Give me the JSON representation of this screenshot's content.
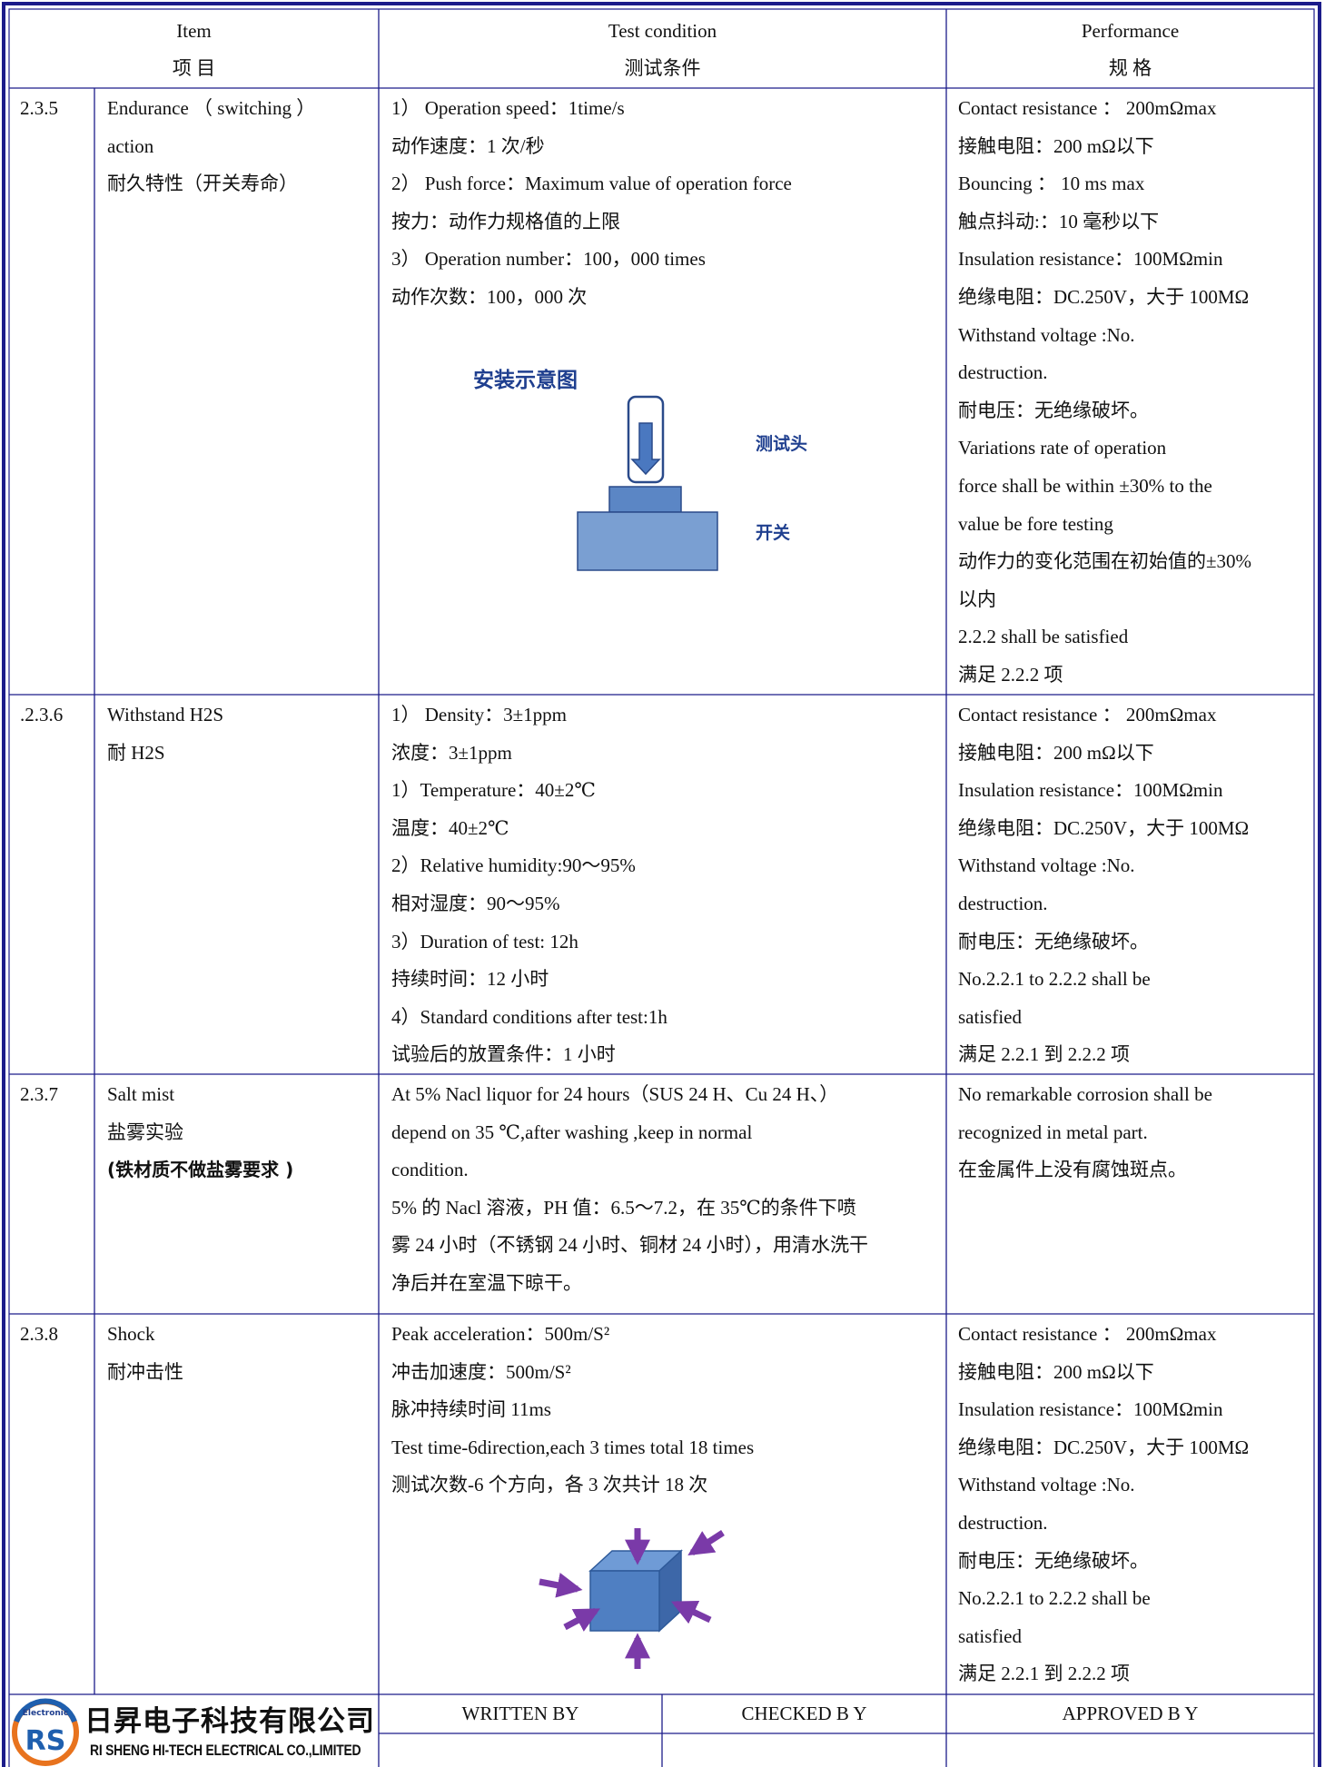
{
  "header": {
    "item_en": "Item",
    "item_zh": "项 目",
    "condition_en": "Test condition",
    "condition_zh": "测试条件",
    "performance_en": "Performance",
    "performance_zh": "规 格"
  },
  "rows": [
    {
      "number": "2.3.5",
      "item": [
        "Endurance （ switching ）",
        "action",
        "耐久特性（开关寿命）"
      ],
      "condition": [
        "1） Operation speed：1time/s",
        "动作速度：1 次/秒",
        "2） Push force：Maximum value of operation force",
        "按力：动作力规格值的上限",
        "3） Operation number：100，000 times",
        "动作次数：100，000 次"
      ],
      "performance": [
        "Contact resistance ： 200mΩmax",
        "接触电阻：200 mΩ以下",
        "Bouncing ： 10 ms max",
        "触点抖动:：10 毫秒以下",
        "Insulation resistance：100MΩmin",
        "绝缘电阻：DC.250V，大于 100MΩ",
        "Withstand voltage :No.",
        "destruction.",
        "耐电压：无绝缘破坏。",
        "Variations rate of operation",
        "force shall be within ±30% to the",
        "value be fore testing",
        "动作力的变化范围在初始值的±30%",
        "以内",
        "2.2.2 shall be satisfied",
        "满足 2.2.2 项"
      ],
      "figure": {
        "title": "安装示意图",
        "probe": "测试头",
        "switch": "开关"
      }
    },
    {
      "number": ".2.3.6",
      "item": [
        "Withstand H2S",
        "耐 H2S"
      ],
      "condition": [
        "1） Density：3±1ppm",
        "浓度：3±1ppm",
        "1）Temperature：40±2℃",
        "温度：40±2℃",
        "2）Relative humidity:90～95%",
        "相对湿度：90～95%",
        "3）Duration of test: 12h",
        "持续时间：12 小时",
        "4）Standard conditions after test:1h",
        "试验后的放置条件：1 小时"
      ],
      "performance": [
        "Contact resistance ： 200mΩmax",
        "接触电阻：200 mΩ以下",
        "Insulation resistance：100MΩmin",
        "绝缘电阻：DC.250V，大于 100MΩ",
        "Withstand voltage :No.",
        "destruction.",
        "耐电压：无绝缘破坏。",
        "No.2.2.1 to 2.2.2 shall be",
        "satisfied",
        "满足 2.2.1 到 2.2.2 项"
      ]
    },
    {
      "number": "2.3.7",
      "item": [
        "Salt mist",
        "盐雾实验",
        "(铁材质不做盐雾要求 )"
      ],
      "condition": [
        "At 5% Nacl liquor for 24 hours（SUS 24 H、Cu 24 H、）",
        "depend on 35 ℃,after washing ,keep in normal",
        "condition.",
        "5% 的 Nacl 溶液，PH 值：6.5～7.2，在 35℃的条件下喷",
        "雾 24 小时（不锈钢 24 小时、铜材 24 小时），用清水洗干",
        "净后并在室温下晾干。"
      ],
      "performance": [
        "No remarkable corrosion shall be",
        "recognized in metal part.",
        "在金属件上没有腐蚀斑点。"
      ]
    },
    {
      "number": "2.3.8",
      "item": [
        "Shock",
        "耐冲击性"
      ],
      "condition": [
        "Peak acceleration：500m/S²",
        "冲击加速度：500m/S²",
        "脉冲持续时间 11ms",
        "Test time-6direction,each 3 times total 18 times",
        "测试次数-6 个方向，各 3 次共计 18 次"
      ],
      "performance": [
        "Contact resistance ： 200mΩmax",
        "接触电阻：200 mΩ以下",
        "Insulation resistance：100MΩmin",
        "绝缘电阻：DC.250V，大于 100MΩ",
        "Withstand voltage :No.",
        "destruction.",
        "耐电压：无绝缘破坏。",
        "No.2.2.1 to 2.2.2 shall be",
        "satisfied",
        "满足 2.2.1 到 2.2.2 项"
      ]
    }
  ],
  "footer": {
    "logo_text": "Electronic",
    "logo_mark": "RS",
    "company_zh": "日昇电子科技有限公司",
    "company_en": "RI SHENG HI-TECH ELECTRICAL CO.,LIMITED",
    "written_by": "WRITTEN BY",
    "checked_by": "CHECKED B Y",
    "approved_by": "APPROVED B Y"
  }
}
